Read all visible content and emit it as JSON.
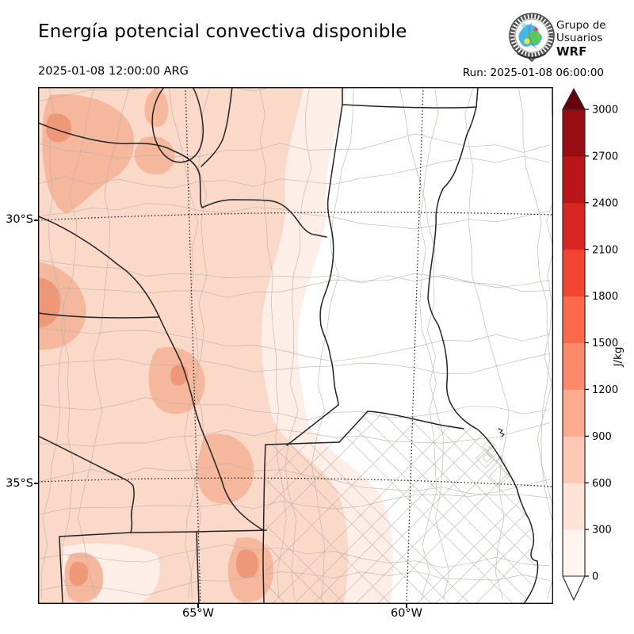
{
  "header": {
    "title": "Energía potencial convectiva disponible",
    "valid_time": "2025-01-08 12:00:00 ARG",
    "run_time": "Run: 2025-01-08 06:00:00"
  },
  "logo": {
    "line1": "Grupo de",
    "line2": "Usuarios",
    "line3": "WRF"
  },
  "map": {
    "lat_ticks": [
      "30°S",
      "35°S"
    ],
    "lon_ticks": [
      "65°W",
      "60°W"
    ]
  },
  "colorbar": {
    "unit_label": "J/kg",
    "tick_values": [
      0,
      300,
      600,
      900,
      1200,
      1500,
      1800,
      2100,
      2400,
      2700,
      3000
    ],
    "bin_colors": [
      "#fff5f0",
      "#fee3d6",
      "#fdc9b4",
      "#fcab8f",
      "#fc8a6a",
      "#fb694a",
      "#f24633",
      "#d92623",
      "#bb151a",
      "#980c13"
    ],
    "over_color": "#67000d",
    "under_color": "#ffffff"
  },
  "chart_data": {
    "type": "heatmap",
    "title": "Energía potencial convectiva disponible",
    "units": "J/kg",
    "scale_ticks": [
      0,
      300,
      600,
      900,
      1200,
      1500,
      1800,
      2100,
      2400,
      2700,
      3000
    ],
    "lat_gridlines": [
      "30°S",
      "35°S"
    ],
    "lon_gridlines": [
      "65°W",
      "60°W"
    ],
    "legend_position": "right"
  }
}
